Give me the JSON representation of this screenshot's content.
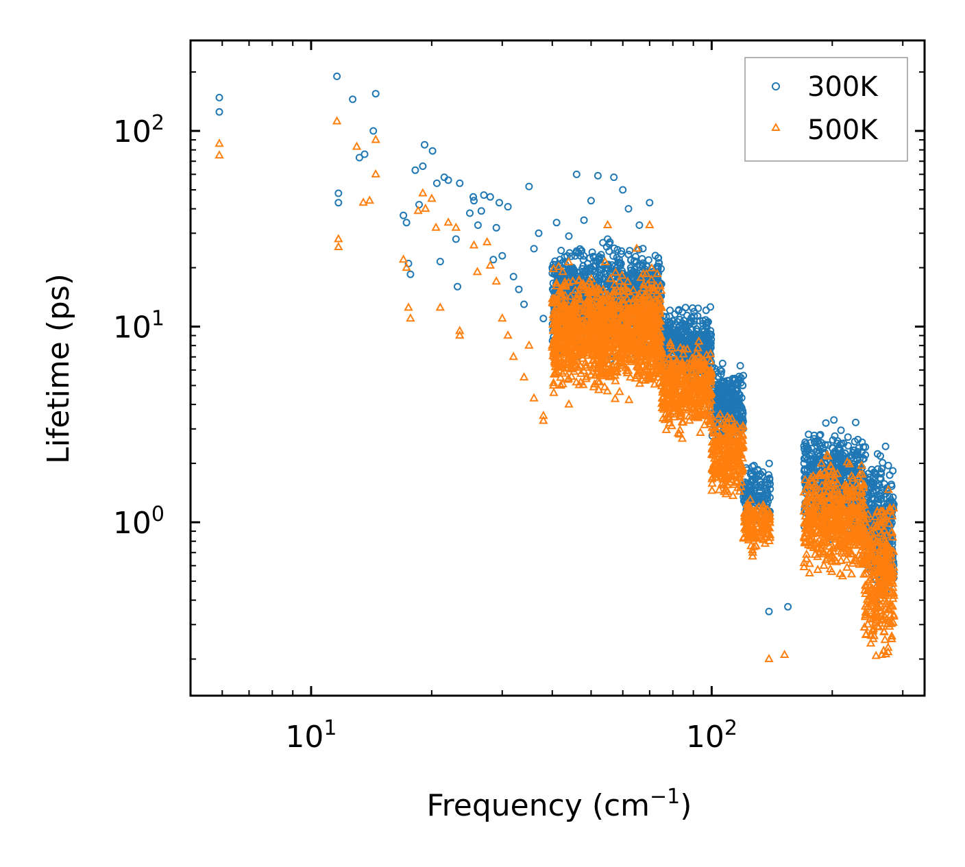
{
  "chart_data": {
    "type": "scatter",
    "xscale": "log",
    "yscale": "log",
    "xlim": [
      5,
      340
    ],
    "ylim": [
      0.13,
      290
    ],
    "xlabel": "Frequency (cm",
    "xlabel_sup": "−1",
    "xlabel_suffix": ")",
    "ylabel": "Lifetime (ps)",
    "x_ticks": [
      {
        "value": 10,
        "base": "10",
        "exp": "1"
      },
      {
        "value": 100,
        "base": "10",
        "exp": "2"
      }
    ],
    "y_ticks": [
      {
        "value": 1,
        "base": "10",
        "exp": "0"
      },
      {
        "value": 10,
        "base": "10",
        "exp": "1"
      },
      {
        "value": 100,
        "base": "10",
        "exp": "2"
      }
    ],
    "legend_position": "top-right",
    "series": [
      {
        "name": "300K",
        "marker": "circle",
        "color": "#1f77b4",
        "key_points": [
          [
            5.9,
            148
          ],
          [
            5.9,
            125
          ],
          [
            11.6,
            190
          ],
          [
            11.7,
            48
          ],
          [
            11.7,
            43
          ],
          [
            12.7,
            145
          ],
          [
            13.2,
            73
          ],
          [
            13.6,
            76
          ],
          [
            14.3,
            100
          ],
          [
            14.5,
            155
          ],
          [
            17,
            37
          ],
          [
            17.3,
            34
          ],
          [
            17.5,
            21
          ],
          [
            17.7,
            18.5
          ],
          [
            18.2,
            63
          ],
          [
            18.6,
            42
          ],
          [
            19,
            66
          ],
          [
            19.2,
            85
          ],
          [
            20.1,
            79
          ],
          [
            20.6,
            54
          ],
          [
            21,
            21.5
          ],
          [
            21.5,
            58
          ],
          [
            22,
            56
          ],
          [
            23,
            28
          ],
          [
            23.2,
            16
          ],
          [
            23.5,
            54
          ],
          [
            24.9,
            38
          ],
          [
            25.4,
            46
          ],
          [
            25.5,
            44
          ],
          [
            26.1,
            33
          ],
          [
            26.6,
            39
          ],
          [
            27,
            47
          ],
          [
            28,
            46
          ],
          [
            28.5,
            22
          ],
          [
            29,
            32
          ],
          [
            29.5,
            43
          ],
          [
            30,
            23
          ],
          [
            31,
            41
          ],
          [
            32,
            18
          ],
          [
            33,
            15.5
          ],
          [
            34,
            13
          ],
          [
            35,
            52
          ],
          [
            36,
            25
          ],
          [
            37,
            30
          ],
          [
            38,
            11
          ],
          [
            40,
            20
          ],
          [
            41,
            34
          ],
          [
            44,
            29
          ],
          [
            46,
            60
          ],
          [
            48,
            35
          ],
          [
            50,
            44
          ],
          [
            52,
            59
          ],
          [
            55,
            28
          ],
          [
            57,
            58
          ],
          [
            60,
            50
          ],
          [
            62,
            40
          ],
          [
            66,
            33
          ],
          [
            70,
            43
          ]
        ],
        "cloud": [
          {
            "x": [
              40,
              75
            ],
            "y": [
              6,
              30
            ],
            "n": 1300
          },
          {
            "x": [
              75,
              100
            ],
            "y": [
              4.5,
              14
            ],
            "n": 450
          },
          {
            "x": [
              100,
              120
            ],
            "y": [
              2.2,
              7
            ],
            "n": 280
          },
          {
            "x": [
              120,
              140
            ],
            "y": [
              0.9,
              2.2
            ],
            "n": 140
          },
          {
            "x": [
              170,
              240
            ],
            "y": [
              0.7,
              3.8
            ],
            "n": 520
          },
          {
            "x": [
              240,
              285
            ],
            "y": [
              0.35,
              2.8
            ],
            "n": 320
          }
        ],
        "outliers": [
          [
            139,
            0.35
          ],
          [
            155,
            0.37
          ],
          [
            285,
            0.55
          ],
          [
            285,
            0.52
          ]
        ]
      },
      {
        "name": "500K",
        "marker": "triangle",
        "color": "#ff7f0e",
        "key_points": [
          [
            5.9,
            86
          ],
          [
            5.9,
            75
          ],
          [
            11.6,
            112
          ],
          [
            11.7,
            28
          ],
          [
            11.7,
            25.5
          ],
          [
            13,
            83
          ],
          [
            13.5,
            43
          ],
          [
            14,
            44
          ],
          [
            14.5,
            90
          ],
          [
            14.5,
            60
          ],
          [
            17,
            22
          ],
          [
            17.3,
            20
          ],
          [
            17.5,
            12.5
          ],
          [
            17.7,
            11
          ],
          [
            18.5,
            39
          ],
          [
            19,
            48
          ],
          [
            19.3,
            40
          ],
          [
            20,
            45
          ],
          [
            20.5,
            32
          ],
          [
            21,
            12.5
          ],
          [
            22,
            34
          ],
          [
            23,
            32
          ],
          [
            23.5,
            9.5
          ],
          [
            23.5,
            9
          ],
          [
            25.5,
            26
          ],
          [
            26,
            19
          ],
          [
            27.5,
            27
          ],
          [
            28,
            20.5
          ],
          [
            29,
            17
          ],
          [
            30,
            11
          ],
          [
            31,
            9
          ],
          [
            32,
            7
          ],
          [
            34,
            5.5
          ],
          [
            35,
            8
          ],
          [
            36,
            4.3
          ],
          [
            38,
            3.3
          ],
          [
            38,
            3.5
          ],
          [
            40,
            8
          ],
          [
            42,
            5
          ],
          [
            44,
            4
          ],
          [
            50,
            16
          ],
          [
            55,
            33
          ],
          [
            60,
            16
          ],
          [
            65,
            25
          ],
          [
            70,
            33
          ]
        ],
        "cloud": [
          {
            "x": [
              40,
              75
            ],
            "y": [
              4,
              22
            ],
            "n": 1300
          },
          {
            "x": [
              75,
              100
            ],
            "y": [
              2.5,
              9
            ],
            "n": 450
          },
          {
            "x": [
              100,
              120
            ],
            "y": [
              1.2,
              4
            ],
            "n": 280
          },
          {
            "x": [
              120,
              140
            ],
            "y": [
              0.65,
              1.5
            ],
            "n": 140
          },
          {
            "x": [
              170,
              240
            ],
            "y": [
              0.45,
              2.4
            ],
            "n": 520
          },
          {
            "x": [
              240,
              285
            ],
            "y": [
              0.16,
              1.8
            ],
            "n": 320
          }
        ],
        "outliers": [
          [
            139,
            0.2
          ],
          [
            152,
            0.21
          ],
          [
            285,
            0.33
          ]
        ]
      }
    ]
  }
}
